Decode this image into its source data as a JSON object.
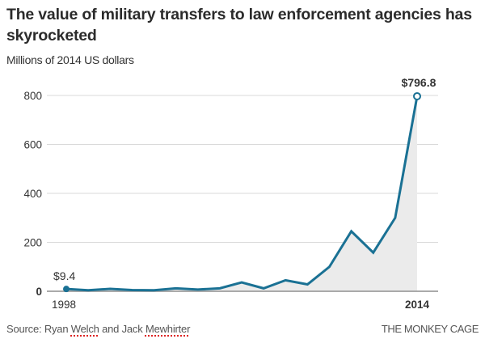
{
  "header": {
    "title": "The value of military transfers to law enforcement agencies has skyrocketed",
    "subtitle": "Millions of 2014 US dollars"
  },
  "footer": {
    "source_prefix": "Source: Ryan ",
    "source_name1": "Welch",
    "source_mid": " and Jack ",
    "source_name2": "Mewhirter",
    "brand": "THE MONKEY CAGE"
  },
  "colors": {
    "line": "#1a7194",
    "area": "#ebebeb",
    "grid": "#d9d9d9",
    "baseline": "#aaaaaa"
  },
  "chart_data": {
    "type": "area",
    "title": "The value of military transfers to law enforcement agencies has skyrocketed",
    "subtitle": "Millions of 2014 US dollars",
    "xlabel": "",
    "ylabel": "Millions of 2014 US dollars",
    "x": [
      1998,
      1999,
      2000,
      2001,
      2002,
      2003,
      2004,
      2005,
      2006,
      2007,
      2008,
      2009,
      2010,
      2011,
      2012,
      2013,
      2014
    ],
    "series": [
      {
        "name": "Value of military transfers",
        "values": [
          9.4,
          4,
          10,
          5,
          4,
          12,
          7,
          12,
          36,
          12,
          45,
          28,
          100,
          245,
          158,
          300,
          796.8
        ]
      }
    ],
    "ylim": [
      0,
      800
    ],
    "yticks": [
      0,
      200,
      400,
      600,
      800
    ],
    "ytick_labels": [
      "0",
      "200",
      "400",
      "600",
      "800"
    ],
    "xtick_labels": [
      "1998",
      "2014"
    ],
    "annotations": [
      {
        "x": 1998,
        "label": "$9.4"
      },
      {
        "x": 2014,
        "label": "$796.8"
      }
    ],
    "grid": true,
    "legend": "none"
  }
}
